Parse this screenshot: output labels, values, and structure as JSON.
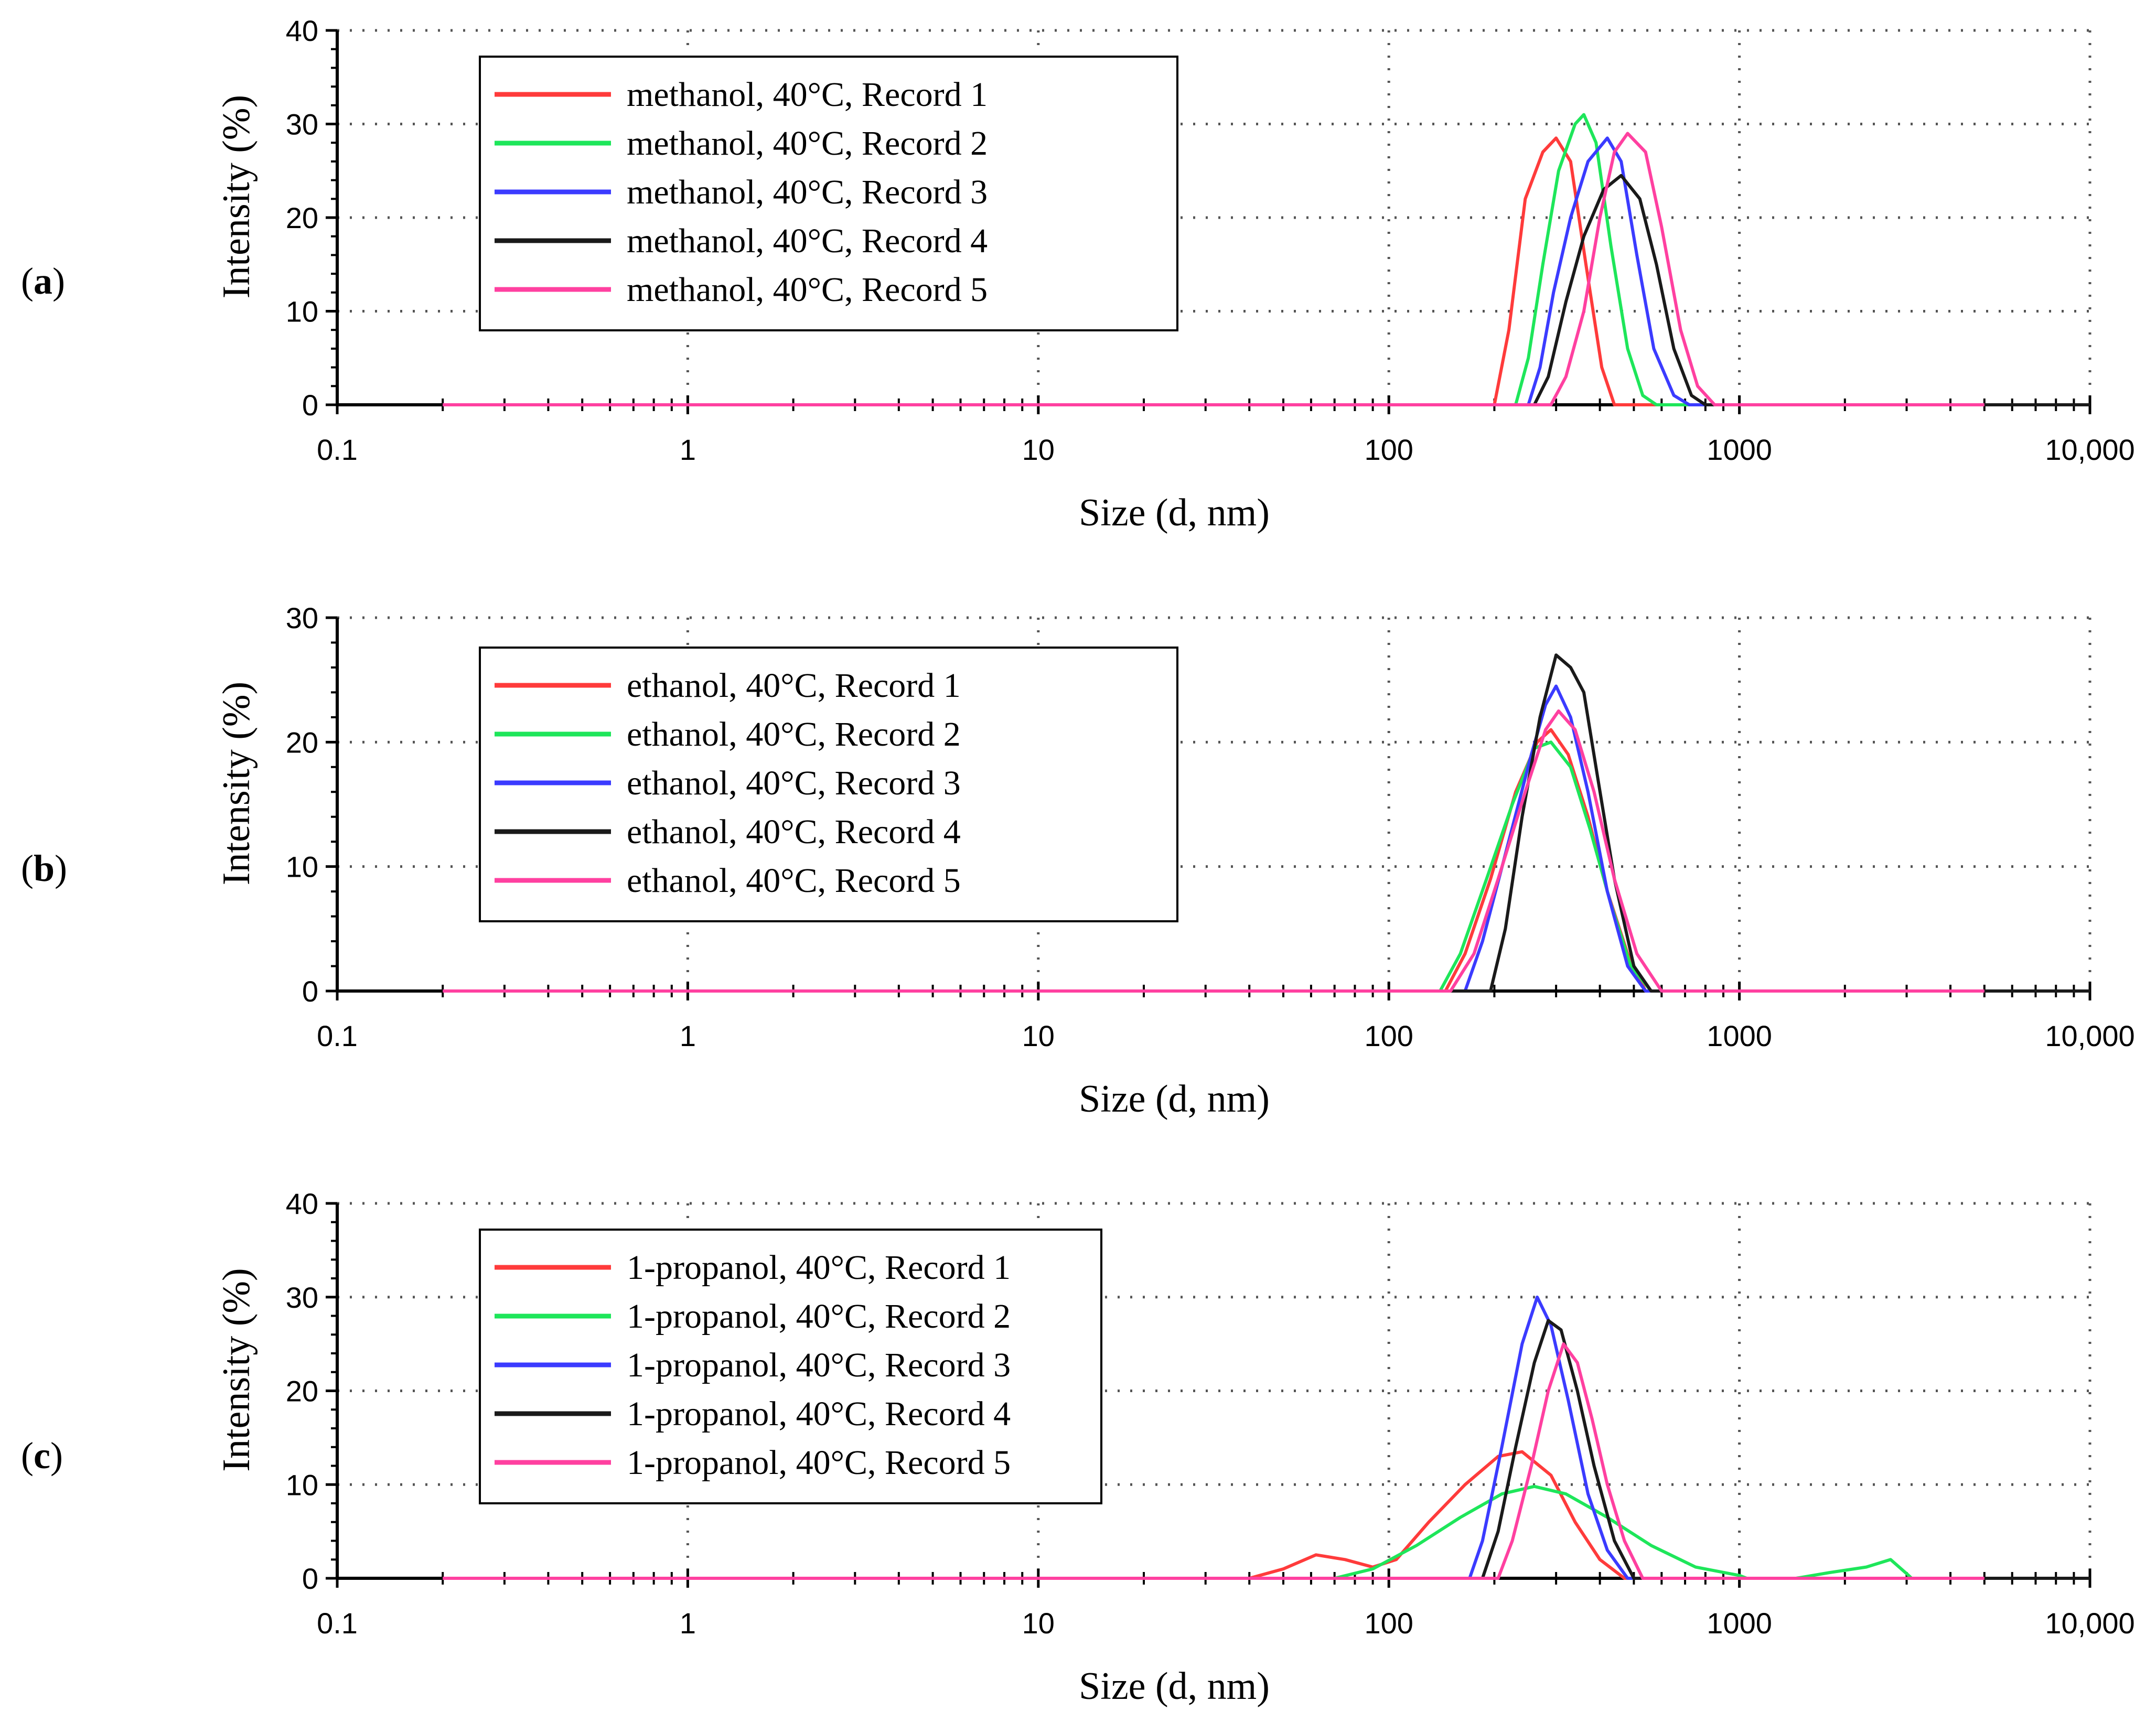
{
  "chart_data": [
    {
      "type": "line",
      "panel_label": "a",
      "xlabel": "Size (d, nm)",
      "ylabel": "Intensity (%)",
      "xscale": "log",
      "xlim": [
        0.1,
        10000
      ],
      "ylim": [
        0,
        40
      ],
      "yticks": [
        "0",
        "10",
        "20",
        "30",
        "40"
      ],
      "xticks": [
        {
          "v": 0.1,
          "label": "0.1"
        },
        {
          "v": 1,
          "label": "1"
        },
        {
          "v": 10,
          "label": "10"
        },
        {
          "v": 100,
          "label": "100"
        },
        {
          "v": 1000,
          "label": "1000"
        },
        {
          "v": 10000,
          "label": "10,000"
        }
      ],
      "grid": true,
      "legend_position": "top-left",
      "series": [
        {
          "name": "methanol, 40°C, Record 1",
          "color": "#ff3b3b",
          "points": [
            [
              0.2,
              0
            ],
            [
              200,
              0
            ],
            [
              220,
              8
            ],
            [
              245,
              22
            ],
            [
              275,
              27
            ],
            [
              300,
              28.5
            ],
            [
              330,
              26
            ],
            [
              365,
              15
            ],
            [
              405,
              4
            ],
            [
              440,
              0
            ],
            [
              5000,
              0
            ]
          ]
        },
        {
          "name": "methanol, 40°C, Record 2",
          "color": "#1ee65a",
          "points": [
            [
              0.2,
              0
            ],
            [
              230,
              0
            ],
            [
              250,
              5
            ],
            [
              275,
              15
            ],
            [
              305,
              25
            ],
            [
              340,
              30
            ],
            [
              360,
              31
            ],
            [
              390,
              28
            ],
            [
              430,
              17
            ],
            [
              480,
              6
            ],
            [
              530,
              1
            ],
            [
              580,
              0
            ],
            [
              5000,
              0
            ]
          ]
        },
        {
          "name": "methanol, 40°C, Record 3",
          "color": "#3b3bff",
          "points": [
            [
              0.2,
              0
            ],
            [
              250,
              0
            ],
            [
              270,
              4
            ],
            [
              295,
              12
            ],
            [
              330,
              20
            ],
            [
              370,
              26
            ],
            [
              420,
              28.5
            ],
            [
              460,
              26
            ],
            [
              510,
              16
            ],
            [
              570,
              6
            ],
            [
              650,
              1
            ],
            [
              720,
              0
            ],
            [
              5000,
              0
            ]
          ]
        },
        {
          "name": "methanol, 40°C, Record 4",
          "color": "#1a1a1a",
          "points": [
            [
              0.2,
              0
            ],
            [
              260,
              0
            ],
            [
              285,
              3
            ],
            [
              320,
              11
            ],
            [
              360,
              18
            ],
            [
              410,
              23
            ],
            [
              460,
              24.5
            ],
            [
              520,
              22
            ],
            [
              580,
              15
            ],
            [
              650,
              6
            ],
            [
              730,
              1
            ],
            [
              800,
              0
            ],
            [
              10000,
              0
            ]
          ]
        },
        {
          "name": "methanol, 40°C, Record 5",
          "color": "#ff40a0",
          "points": [
            [
              0.2,
              0
            ],
            [
              290,
              0
            ],
            [
              320,
              3
            ],
            [
              360,
              10
            ],
            [
              400,
              20
            ],
            [
              440,
              27
            ],
            [
              480,
              29
            ],
            [
              540,
              27
            ],
            [
              600,
              19
            ],
            [
              680,
              8
            ],
            [
              760,
              2
            ],
            [
              850,
              0
            ],
            [
              5000,
              0
            ]
          ]
        }
      ]
    },
    {
      "type": "line",
      "panel_label": "b",
      "xlabel": "Size (d, nm)",
      "ylabel": "Intensity (%)",
      "xscale": "log",
      "xlim": [
        0.1,
        10000
      ],
      "ylim": [
        0,
        30
      ],
      "yticks": [
        "0",
        "10",
        "20",
        "30"
      ],
      "xticks": [
        {
          "v": 0.1,
          "label": "0.1"
        },
        {
          "v": 1,
          "label": "1"
        },
        {
          "v": 10,
          "label": "10"
        },
        {
          "v": 100,
          "label": "100"
        },
        {
          "v": 1000,
          "label": "1000"
        },
        {
          "v": 10000,
          "label": "10,000"
        }
      ],
      "grid": true,
      "legend_position": "top-left",
      "series": [
        {
          "name": "ethanol, 40°C, Record 1",
          "color": "#ff3b3b",
          "points": [
            [
              0.2,
              0
            ],
            [
              145,
              0
            ],
            [
              165,
              3
            ],
            [
              195,
              9
            ],
            [
              230,
              16
            ],
            [
              265,
              20
            ],
            [
              290,
              21
            ],
            [
              325,
              19
            ],
            [
              370,
              14
            ],
            [
              420,
              8
            ],
            [
              480,
              3
            ],
            [
              540,
              0
            ],
            [
              5000,
              0
            ]
          ]
        },
        {
          "name": "ethanol, 40°C, Record 2",
          "color": "#1ee65a",
          "points": [
            [
              0.2,
              0
            ],
            [
              140,
              0
            ],
            [
              160,
              3
            ],
            [
              190,
              9
            ],
            [
              225,
              15
            ],
            [
              260,
              19.5
            ],
            [
              290,
              20
            ],
            [
              330,
              18
            ],
            [
              375,
              13
            ],
            [
              430,
              7
            ],
            [
              490,
              2
            ],
            [
              560,
              0
            ],
            [
              5000,
              0
            ]
          ]
        },
        {
          "name": "ethanol, 40°C, Record 3",
          "color": "#3b3bff",
          "points": [
            [
              0.2,
              0
            ],
            [
              165,
              0
            ],
            [
              185,
              4
            ],
            [
              215,
              11
            ],
            [
              255,
              19
            ],
            [
              280,
              23
            ],
            [
              300,
              24.5
            ],
            [
              330,
              22
            ],
            [
              370,
              16
            ],
            [
              420,
              8
            ],
            [
              480,
              2
            ],
            [
              540,
              0
            ],
            [
              5000,
              0
            ]
          ]
        },
        {
          "name": "ethanol, 40°C, Record 4",
          "color": "#1a1a1a",
          "points": [
            [
              0.2,
              0
            ],
            [
              195,
              0
            ],
            [
              215,
              5
            ],
            [
              240,
              14
            ],
            [
              270,
              22
            ],
            [
              300,
              27
            ],
            [
              330,
              26
            ],
            [
              360,
              24
            ],
            [
              395,
              17
            ],
            [
              440,
              9
            ],
            [
              500,
              2
            ],
            [
              560,
              0
            ],
            [
              10000,
              0
            ]
          ]
        },
        {
          "name": "ethanol, 40°C, Record 5",
          "color": "#ff40a0",
          "points": [
            [
              0.2,
              0
            ],
            [
              150,
              0
            ],
            [
              175,
              3
            ],
            [
              205,
              9
            ],
            [
              245,
              16
            ],
            [
              280,
              21
            ],
            [
              305,
              22.5
            ],
            [
              340,
              21
            ],
            [
              385,
              16
            ],
            [
              440,
              9
            ],
            [
              510,
              3
            ],
            [
              600,
              0
            ],
            [
              5000,
              0
            ]
          ]
        }
      ]
    },
    {
      "type": "line",
      "panel_label": "c",
      "xlabel": "Size (d, nm)",
      "ylabel": "Intensity (%)",
      "xscale": "log",
      "xlim": [
        0.1,
        10000
      ],
      "ylim": [
        0,
        40
      ],
      "yticks": [
        "0",
        "10",
        "20",
        "30",
        "40"
      ],
      "xticks": [
        {
          "v": 0.1,
          "label": "0.1"
        },
        {
          "v": 1,
          "label": "1"
        },
        {
          "v": 10,
          "label": "10"
        },
        {
          "v": 100,
          "label": "100"
        },
        {
          "v": 1000,
          "label": "1000"
        },
        {
          "v": 10000,
          "label": "10,000"
        }
      ],
      "grid": true,
      "legend_position": "top-left",
      "series": [
        {
          "name": "1-propanol, 40°C, Record 1",
          "color": "#ff3b3b",
          "points": [
            [
              0.2,
              0
            ],
            [
              40,
              0
            ],
            [
              50,
              1
            ],
            [
              62,
              2.5
            ],
            [
              75,
              2
            ],
            [
              90,
              1.2
            ],
            [
              105,
              2
            ],
            [
              130,
              6
            ],
            [
              165,
              10
            ],
            [
              205,
              13
            ],
            [
              240,
              13.5
            ],
            [
              290,
              11
            ],
            [
              340,
              6
            ],
            [
              400,
              2
            ],
            [
              470,
              0
            ],
            [
              5000,
              0
            ]
          ]
        },
        {
          "name": "1-propanol, 40°C, Record 2",
          "color": "#1ee65a",
          "points": [
            [
              0.2,
              0
            ],
            [
              70,
              0
            ],
            [
              90,
              1
            ],
            [
              120,
              3.5
            ],
            [
              160,
              6.5
            ],
            [
              210,
              9
            ],
            [
              260,
              9.8
            ],
            [
              320,
              9
            ],
            [
              420,
              6.5
            ],
            [
              560,
              3.5
            ],
            [
              750,
              1.2
            ],
            [
              1000,
              0.3
            ],
            [
              1050,
              0
            ],
            [
              1450,
              0
            ],
            [
              1800,
              0.6
            ],
            [
              2300,
              1.2
            ],
            [
              2700,
              2
            ],
            [
              3000,
              0.5
            ],
            [
              3100,
              0
            ],
            [
              5000,
              0
            ]
          ]
        },
        {
          "name": "1-propanol, 40°C, Record 3",
          "color": "#3b3bff",
          "points": [
            [
              0.2,
              0
            ],
            [
              170,
              0
            ],
            [
              185,
              4
            ],
            [
              210,
              14
            ],
            [
              240,
              25
            ],
            [
              265,
              30
            ],
            [
              290,
              27
            ],
            [
              325,
              19
            ],
            [
              370,
              9
            ],
            [
              420,
              3
            ],
            [
              480,
              0
            ],
            [
              5000,
              0
            ]
          ]
        },
        {
          "name": "1-propanol, 40°C, Record 4",
          "color": "#1a1a1a",
          "points": [
            [
              0.2,
              0
            ],
            [
              185,
              0
            ],
            [
              205,
              5
            ],
            [
              230,
              14
            ],
            [
              260,
              23
            ],
            [
              285,
              27.5
            ],
            [
              310,
              26.5
            ],
            [
              345,
              20
            ],
            [
              385,
              12
            ],
            [
              440,
              4
            ],
            [
              500,
              0
            ],
            [
              10000,
              0
            ]
          ]
        },
        {
          "name": "1-propanol, 40°C, Record 5",
          "color": "#ff40a0",
          "points": [
            [
              0.2,
              0
            ],
            [
              205,
              0
            ],
            [
              225,
              4
            ],
            [
              255,
              12
            ],
            [
              285,
              20
            ],
            [
              315,
              25
            ],
            [
              345,
              23
            ],
            [
              380,
              17
            ],
            [
              420,
              10
            ],
            [
              470,
              4
            ],
            [
              530,
              0
            ],
            [
              5000,
              0
            ]
          ]
        }
      ]
    }
  ]
}
